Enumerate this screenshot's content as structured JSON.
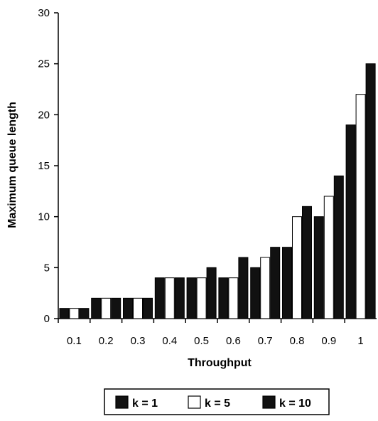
{
  "chart_data": {
    "type": "bar",
    "xlabel": "Throughput",
    "ylabel": "Maximum queue length",
    "categories": [
      "0.1",
      "0.2",
      "0.3",
      "0.4",
      "0.5",
      "0.6",
      "0.7",
      "0.8",
      "0.9",
      "1"
    ],
    "series": [
      {
        "name": "k = 1",
        "values": [
          1,
          2,
          2,
          4,
          4,
          4,
          5,
          7,
          10,
          19
        ],
        "color": "#111111"
      },
      {
        "name": "k = 5",
        "values": [
          1,
          2,
          2,
          4,
          4,
          4,
          6,
          10,
          12,
          22
        ],
        "color": "#ffffff"
      },
      {
        "name": "k = 10",
        "values": [
          1,
          2,
          2,
          4,
          5,
          6,
          7,
          11,
          14,
          25
        ],
        "color": "#111111"
      }
    ],
    "ylim": [
      0,
      30
    ],
    "yticks": [
      0,
      5,
      10,
      15,
      20,
      25,
      30
    ],
    "grid": false,
    "legend": "bottom"
  }
}
